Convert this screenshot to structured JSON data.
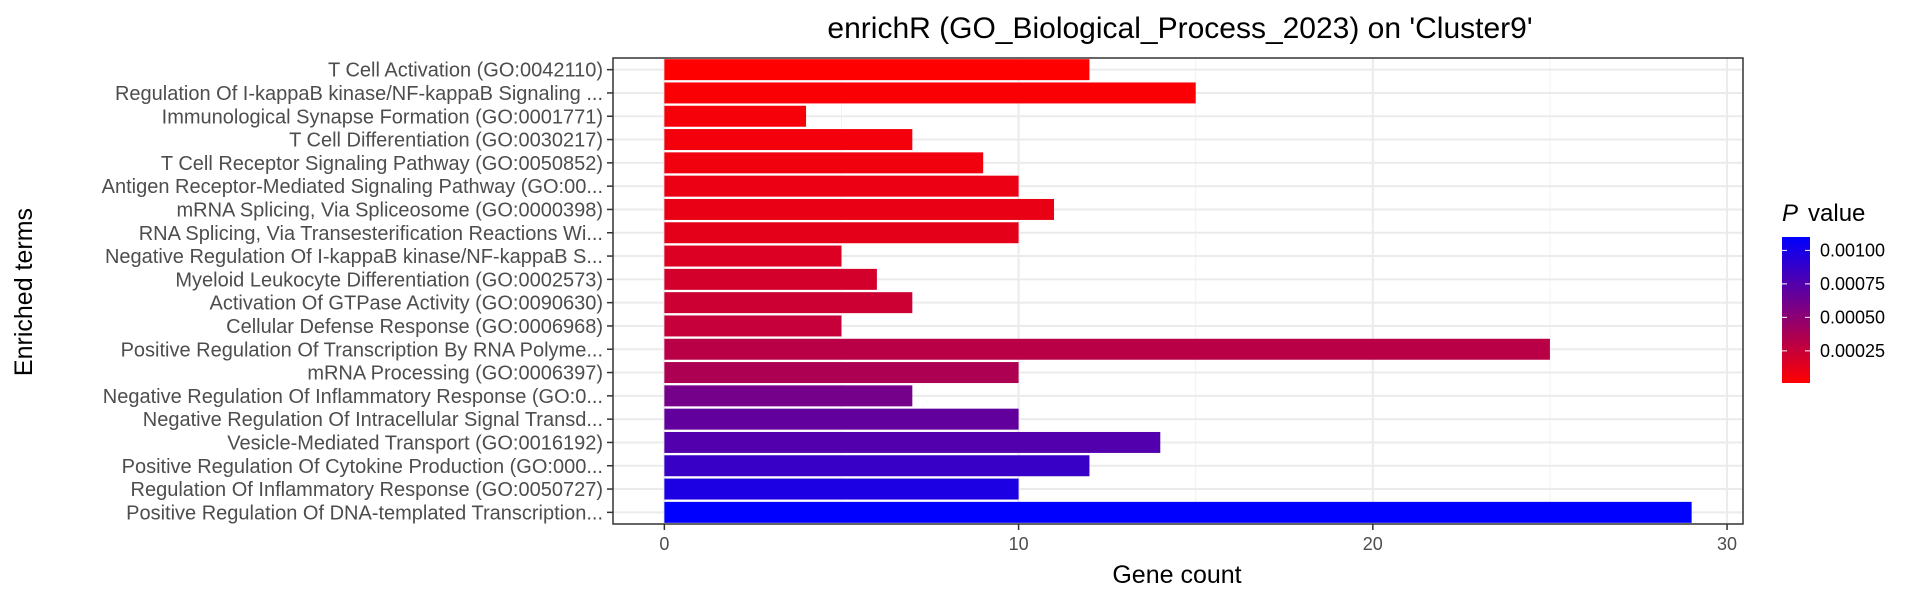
{
  "chart_data": {
    "type": "bar",
    "orientation": "horizontal",
    "title": "enrichR (GO_Biological_Process_2023) on 'Cluster9'",
    "xlabel": "Gene count",
    "ylabel": "Enriched terms",
    "xlim": [
      -1.45,
      30.45
    ],
    "xticks": [
      0,
      10,
      20,
      30
    ],
    "grid": true,
    "categories": [
      "T Cell Activation (GO:0042110)",
      "Regulation Of I-kappaB kinase/NF-kappaB Signaling ...",
      "Immunological Synapse Formation (GO:0001771)",
      "T Cell Differentiation (GO:0030217)",
      "T Cell Receptor Signaling Pathway (GO:0050852)",
      "Antigen Receptor-Mediated Signaling Pathway (GO:00...",
      "mRNA Splicing, Via Spliceosome (GO:0000398)",
      "RNA Splicing, Via Transesterification Reactions Wi...",
      "Negative Regulation Of I-kappaB kinase/NF-kappaB S...",
      "Myeloid Leukocyte Differentiation (GO:0002573)",
      "Activation Of GTPase Activity (GO:0090630)",
      "Cellular Defense Response (GO:0006968)",
      "Positive Regulation Of Transcription By RNA Polyme...",
      "mRNA Processing (GO:0006397)",
      "Negative Regulation Of Inflammatory Response (GO:0...",
      "Negative Regulation Of Intracellular Signal Transd...",
      "Vesicle-Mediated Transport (GO:0016192)",
      "Positive Regulation Of Cytokine Production (GO:000...",
      "Regulation Of Inflammatory Response (GO:0050727)",
      "Positive Regulation Of DNA-templated Transcription..."
    ],
    "values": [
      12,
      15,
      4,
      7,
      9,
      10,
      11,
      10,
      5,
      6,
      7,
      5,
      25,
      10,
      7,
      10,
      14,
      12,
      10,
      29
    ],
    "pvalues": [
      1e-05,
      3e-05,
      5e-05,
      6e-05,
      7e-05,
      9e-05,
      0.0001,
      0.00012,
      0.00016,
      0.0002,
      0.00023,
      0.00026,
      0.00031,
      0.00036,
      0.0006,
      0.00068,
      0.00075,
      0.00086,
      0.00098,
      0.0011
    ],
    "legend": {
      "title_italic": "P",
      "title_rest": "value",
      "placement": "right",
      "color_low": "#ff0000",
      "color_high": "#0000ff",
      "range": [
        1e-05,
        0.0011
      ],
      "breaks": [
        0.001,
        0.00075,
        0.0005,
        0.00025
      ],
      "labels": [
        "0.00100",
        "0.00075",
        "0.00050",
        "0.00025"
      ]
    }
  }
}
